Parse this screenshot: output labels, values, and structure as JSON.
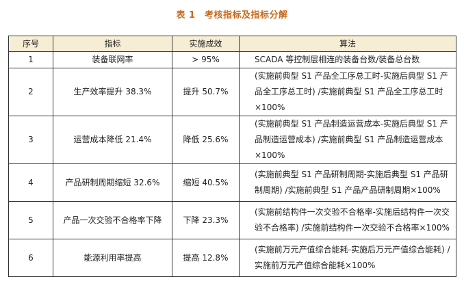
{
  "caption": "表 1　考核指标及指标分解",
  "table": {
    "headers": [
      "序号",
      "指标",
      "实施成效",
      "算法"
    ],
    "rows": [
      {
        "no": "1",
        "indicator": "装备联网率",
        "effect": "> 95%",
        "formula": "SCADA 等控制层相连的装备台数/装备总台数"
      },
      {
        "no": "2",
        "indicator": "生产效率提升 38.3%",
        "effect": "提升 50.7%",
        "formula": "(实施前典型 S1 产品全工序总工时-实施后典型 S1 产品全工序总工时) /实施前典型 S1 产品全工序总工时×100%"
      },
      {
        "no": "3",
        "indicator": "运营成本降低 21.4%",
        "effect": "降低 25.6%",
        "formula": "(实施前典型 S1 产品制造运营成本-实施后典型 S1 产品制造运营成本) /实施前典型 S1 产品制造运营成本×100%"
      },
      {
        "no": "4",
        "indicator": "产品研制周期缩短 32.6%",
        "effect": "缩短 40.5%",
        "formula": "(实施前典型 S1 产品研制周期-实施后典型 S1 产品研制周期) /实施前典型 S1 产品产品研制周期×100%"
      },
      {
        "no": "5",
        "indicator": "产品一次交验不合格率下降",
        "effect": "下降 23.3%",
        "formula": "(实施前结构件一次交验不合格率-实施后结构件一次交验不合格率) /实施前结构件一次交验不合格率×100%"
      },
      {
        "no": "6",
        "indicator": "能源利用率提高",
        "effect": "提高 12.8%",
        "formula": "(实施前万元产值综合能耗-实施后万元产值综合能耗) /实施前万元产值综合能耗×100%"
      }
    ]
  }
}
